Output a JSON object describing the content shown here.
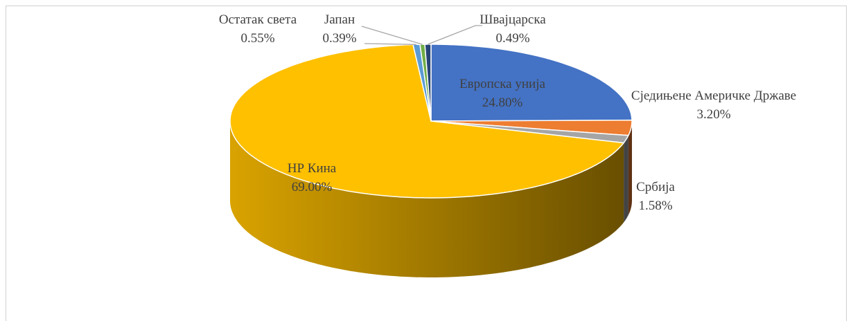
{
  "chart_data": {
    "type": "pie",
    "categories": [
      "Европска унија",
      "Сједињене Америчке Државе",
      "Србија",
      "НР Кина",
      "Остатак света",
      "Јапан",
      "Швајцарска"
    ],
    "values": [
      24.8,
      3.2,
      1.58,
      69.0,
      0.55,
      0.39,
      0.49
    ],
    "value_labels": [
      "24.80%",
      "3.20%",
      "1.58%",
      "69.00%",
      "0.55%",
      "0.39%",
      "0.49%"
    ],
    "colors": [
      "#4472c4",
      "#ed7d31",
      "#a5a5a5",
      "#ffc000",
      "#5b9bd5",
      "#70ad47",
      "#264478"
    ]
  }
}
